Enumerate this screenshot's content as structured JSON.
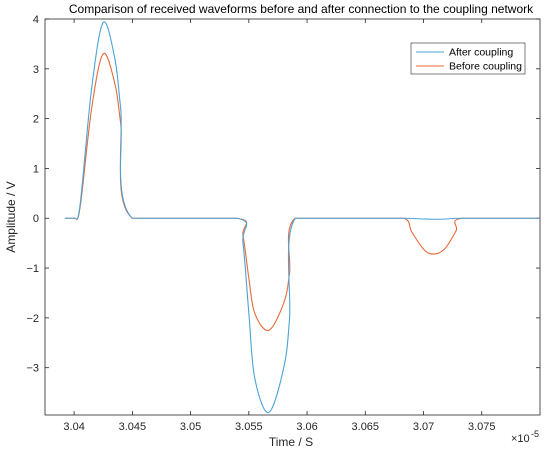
{
  "chart_data": {
    "type": "line",
    "title": "Comparison of received waveforms before and after connection to the coupling network",
    "xlabel": "Time / S",
    "ylabel": "Amplitude / V",
    "x_exponent_label": "×10",
    "x_exponent_value": "-5",
    "xlim": [
      3.0375,
      3.08
    ],
    "ylim": [
      -3.95,
      4.0
    ],
    "x_ticks": [
      3.04,
      3.045,
      3.05,
      3.055,
      3.06,
      3.065,
      3.07,
      3.075
    ],
    "x_tick_labels": [
      "3.04",
      "3.045",
      "3.05",
      "3.055",
      "3.06",
      "3.065",
      "3.07",
      "3.075"
    ],
    "y_ticks": [
      -3,
      -2,
      -1,
      0,
      1,
      2,
      3,
      4
    ],
    "y_tick_labels": [
      "−3",
      "−2",
      "−1",
      "0",
      "1",
      "2",
      "3",
      "4"
    ],
    "grid": false,
    "legend_position": "top-right",
    "series": [
      {
        "name": "After coupling",
        "color": "#4aa3d6",
        "x": [
          3.0392,
          3.04,
          3.0405,
          3.0415,
          3.0425,
          3.0435,
          3.044,
          3.045,
          3.054,
          3.0545,
          3.055,
          3.0555,
          3.0567,
          3.058,
          3.0585,
          3.059,
          3.065,
          3.0683,
          3.07,
          3.0708,
          3.072,
          3.0733,
          3.08
        ],
        "y": [
          0,
          0,
          0.25,
          2.6,
          3.93,
          3.2,
          2.2,
          0,
          0,
          -0.5,
          -1.9,
          -3.2,
          -3.9,
          -3.0,
          -2.0,
          0,
          0,
          0,
          -0.015,
          -0.02,
          -0.015,
          0,
          0
        ]
      },
      {
        "name": "Before coupling",
        "color": "#e8683a",
        "x": [
          3.0392,
          3.04,
          3.0405,
          3.0415,
          3.0425,
          3.0435,
          3.044,
          3.045,
          3.054,
          3.0545,
          3.055,
          3.0555,
          3.0567,
          3.058,
          3.0585,
          3.059,
          3.065,
          3.0683,
          3.069,
          3.07,
          3.0708,
          3.0718,
          3.0728,
          3.0733,
          3.08
        ],
        "y": [
          0,
          0,
          0.2,
          2.2,
          3.3,
          2.7,
          1.9,
          0,
          0,
          -0.35,
          -1.2,
          -1.9,
          -2.25,
          -1.7,
          -1.1,
          0,
          0,
          0,
          -0.28,
          -0.62,
          -0.72,
          -0.62,
          -0.25,
          0,
          0
        ]
      }
    ]
  }
}
